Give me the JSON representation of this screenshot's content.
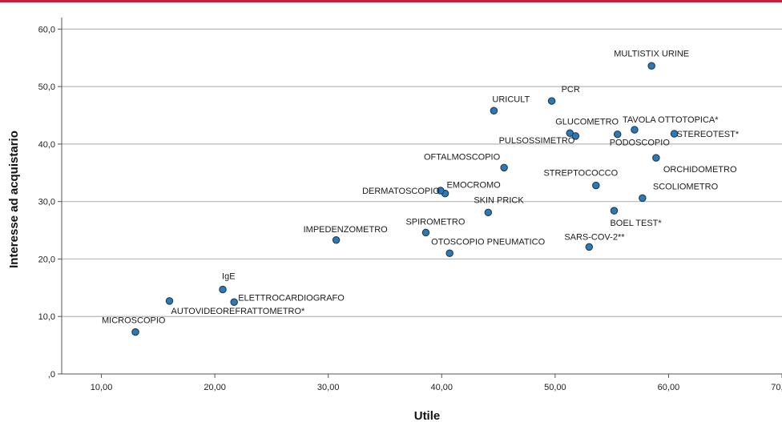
{
  "colors": {
    "top_bar": "#c8203a",
    "point_fill": "#2e78b3",
    "point_stroke": "#1c3b56",
    "grid": "#b8b8b8"
  },
  "chart_data": {
    "type": "scatter",
    "title": "",
    "xlabel": "Utile",
    "ylabel": "Interesse ad acquistario",
    "xlim": [
      6.5,
      70
    ],
    "ylim": [
      0,
      62
    ],
    "x_ticks": [
      10,
      20,
      30,
      40,
      50,
      60,
      70
    ],
    "x_tick_labels": [
      "10,00",
      "20,00",
      "30,00",
      "40,00",
      "50,00",
      "60,00",
      "70,00"
    ],
    "y_ticks": [
      0,
      10,
      20,
      30,
      40,
      50,
      60
    ],
    "y_tick_labels": [
      ",0",
      "10,0",
      "20,0",
      "30,0",
      "40,0",
      "50,0",
      "60,0"
    ],
    "grid": "horizontal",
    "points": [
      {
        "label": "MULTISTIX URINE",
        "x": 58.5,
        "y": 53.6
      },
      {
        "label": "PCR",
        "x": 49.7,
        "y": 47.5
      },
      {
        "label": "URICULT",
        "x": 44.6,
        "y": 45.8
      },
      {
        "label": "GLUCOMETRO",
        "x": 51.3,
        "y": 41.9
      },
      {
        "label": "PULSOSSIMETRO",
        "x": 51.8,
        "y": 41.4
      },
      {
        "label": "PODOSCOPIO",
        "x": 55.5,
        "y": 41.7
      },
      {
        "label": "TAVOLA OTTOTOPICA*",
        "x": 57.0,
        "y": 42.5
      },
      {
        "label": "STEREOTEST*",
        "x": 60.5,
        "y": 41.8
      },
      {
        "label": "ORCHIDOMETRO",
        "x": 58.9,
        "y": 37.6
      },
      {
        "label": "OFTALMOSCOPIO",
        "x": 45.5,
        "y": 35.9
      },
      {
        "label": "STREPTOCOCCO",
        "x": 53.6,
        "y": 32.8
      },
      {
        "label": "SCOLIOMETRO",
        "x": 57.7,
        "y": 30.6
      },
      {
        "label": "EMOCROMO",
        "x": 40.3,
        "y": 31.4
      },
      {
        "label": "DERMATOSCOPIO",
        "x": 39.9,
        "y": 31.9
      },
      {
        "label": "SKIN PRICK",
        "x": 44.1,
        "y": 28.1
      },
      {
        "label": "BOEL TEST*",
        "x": 55.2,
        "y": 28.4
      },
      {
        "label": "SPIROMETRO",
        "x": 38.6,
        "y": 24.6
      },
      {
        "label": "IMPEDENZOMETRO",
        "x": 30.7,
        "y": 23.3
      },
      {
        "label": "SARS-COV-2**",
        "x": 53.0,
        "y": 22.1
      },
      {
        "label": "OTOSCOPIO PNEUMATICO",
        "x": 40.7,
        "y": 21.0
      },
      {
        "label": "IgE",
        "x": 20.7,
        "y": 14.7
      },
      {
        "label": "ELETTROCARDIOGRAFO",
        "x": 21.7,
        "y": 12.5
      },
      {
        "label": "AUTOVIDEOREFRATTOMETRO*",
        "x": 16.0,
        "y": 12.7
      },
      {
        "label": "MICROSCOPIO",
        "x": 13.0,
        "y": 7.3
      }
    ]
  }
}
